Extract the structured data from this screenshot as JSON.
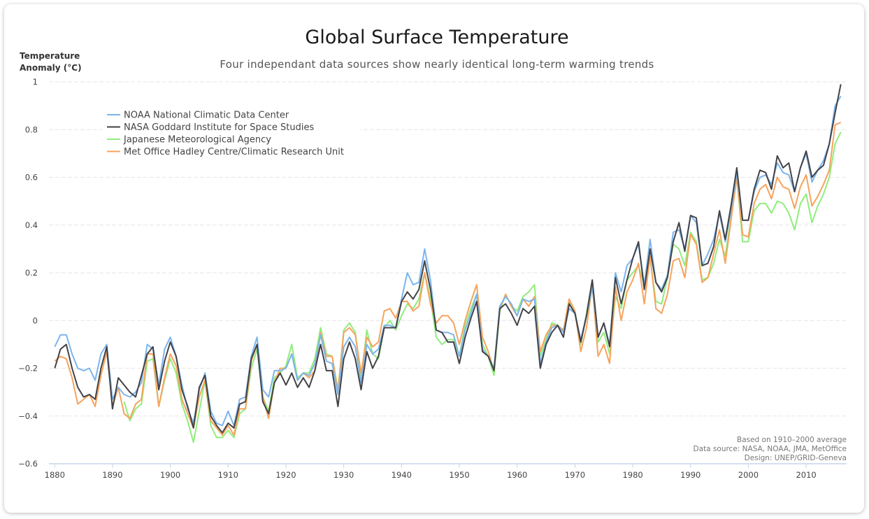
{
  "chart_data": {
    "type": "line",
    "title": "Global Surface Temperature",
    "subtitle": "Four independant data sources show nearly identical long-term warming trends",
    "ylabel_line1": "Temperature",
    "ylabel_line2": "Anomaly (°C)",
    "xlabel": "",
    "xlim": [
      1879,
      2017
    ],
    "ylim": [
      -0.6,
      1.0
    ],
    "y_ticks": [
      -0.6,
      -0.4,
      -0.2,
      0,
      0.2,
      0.4,
      0.6,
      0.8,
      1
    ],
    "y_tick_labels": [
      "−0.6",
      "−0.4",
      "−0.2",
      "0",
      "0.2",
      "0.4",
      "0.6",
      "0.8",
      "1"
    ],
    "x_ticks": [
      1880,
      1890,
      1900,
      1910,
      1920,
      1930,
      1940,
      1950,
      1960,
      1970,
      1980,
      1990,
      2000,
      2010
    ],
    "x_tick_labels": [
      "1880",
      "1890",
      "1900",
      "1910",
      "1920",
      "1930",
      "1940",
      "1950",
      "1960",
      "1970",
      "1980",
      "1990",
      "2000",
      "2010"
    ],
    "grid": true,
    "legend_position": "top-left",
    "x_start": 1880,
    "series": [
      {
        "name": "NOAA National Climatic Data Center",
        "color": "#7cb5ec",
        "values": [
          -0.11,
          -0.06,
          -0.06,
          -0.14,
          -0.2,
          -0.21,
          -0.2,
          -0.25,
          -0.14,
          -0.1,
          -0.33,
          -0.28,
          -0.31,
          -0.32,
          -0.3,
          -0.26,
          -0.1,
          -0.12,
          -0.27,
          -0.12,
          -0.07,
          -0.15,
          -0.27,
          -0.37,
          -0.43,
          -0.29,
          -0.22,
          -0.38,
          -0.43,
          -0.44,
          -0.38,
          -0.44,
          -0.33,
          -0.32,
          -0.15,
          -0.07,
          -0.29,
          -0.32,
          -0.21,
          -0.21,
          -0.2,
          -0.14,
          -0.25,
          -0.22,
          -0.23,
          -0.18,
          -0.06,
          -0.17,
          -0.18,
          -0.31,
          -0.11,
          -0.07,
          -0.11,
          -0.26,
          -0.1,
          -0.14,
          -0.12,
          -0.02,
          -0.02,
          -0.03,
          0.09,
          0.2,
          0.15,
          0.16,
          0.3,
          0.17,
          -0.04,
          -0.05,
          -0.05,
          -0.06,
          -0.15,
          -0.04,
          0.03,
          0.11,
          -0.12,
          -0.15,
          -0.2,
          0.06,
          0.1,
          0.07,
          0.02,
          0.09,
          0.08,
          0.09,
          -0.18,
          -0.09,
          -0.03,
          -0.02,
          -0.05,
          0.05,
          0.03,
          -0.08,
          0.02,
          0.14,
          -0.07,
          -0.01,
          -0.1,
          0.2,
          0.12,
          0.23,
          0.26,
          0.32,
          0.15,
          0.34,
          0.16,
          0.13,
          0.19,
          0.37,
          0.38,
          0.3,
          0.44,
          0.41,
          0.23,
          0.28,
          0.34,
          0.45,
          0.33,
          0.46,
          0.62,
          0.42,
          0.42,
          0.54,
          0.6,
          0.61,
          0.57,
          0.66,
          0.62,
          0.61,
          0.54,
          0.64,
          0.7,
          0.58,
          0.63,
          0.67,
          0.74,
          0.9,
          0.94
        ]
      },
      {
        "name": "NASA Goddard Institute for Space Studies",
        "color": "#434348",
        "values": [
          -0.2,
          -0.12,
          -0.1,
          -0.2,
          -0.28,
          -0.32,
          -0.31,
          -0.33,
          -0.2,
          -0.11,
          -0.37,
          -0.24,
          -0.27,
          -0.3,
          -0.32,
          -0.23,
          -0.14,
          -0.11,
          -0.29,
          -0.17,
          -0.09,
          -0.15,
          -0.29,
          -0.36,
          -0.45,
          -0.28,
          -0.23,
          -0.4,
          -0.44,
          -0.47,
          -0.43,
          -0.45,
          -0.35,
          -0.34,
          -0.16,
          -0.1,
          -0.34,
          -0.39,
          -0.26,
          -0.22,
          -0.27,
          -0.22,
          -0.28,
          -0.24,
          -0.28,
          -0.21,
          -0.1,
          -0.21,
          -0.21,
          -0.36,
          -0.16,
          -0.09,
          -0.16,
          -0.29,
          -0.13,
          -0.2,
          -0.15,
          -0.03,
          -0.03,
          -0.03,
          0.08,
          0.12,
          0.09,
          0.13,
          0.25,
          0.13,
          -0.04,
          -0.05,
          -0.09,
          -0.09,
          -0.18,
          -0.07,
          0.01,
          0.08,
          -0.13,
          -0.15,
          -0.21,
          0.05,
          0.07,
          0.03,
          -0.02,
          0.05,
          0.03,
          0.06,
          -0.2,
          -0.1,
          -0.05,
          -0.02,
          -0.07,
          0.07,
          0.03,
          -0.09,
          0.02,
          0.17,
          -0.07,
          -0.01,
          -0.11,
          0.18,
          0.07,
          0.17,
          0.26,
          0.33,
          0.13,
          0.3,
          0.16,
          0.12,
          0.18,
          0.33,
          0.41,
          0.29,
          0.44,
          0.43,
          0.23,
          0.24,
          0.31,
          0.46,
          0.34,
          0.48,
          0.64,
          0.42,
          0.42,
          0.55,
          0.63,
          0.62,
          0.55,
          0.69,
          0.64,
          0.66,
          0.54,
          0.64,
          0.71,
          0.6,
          0.63,
          0.65,
          0.74,
          0.87,
          0.99
        ]
      },
      {
        "name": "Japanese Meteorological Agency",
        "color": "#90ed7d",
        "values": [
          null,
          null,
          null,
          null,
          null,
          null,
          null,
          null,
          null,
          null,
          null,
          null,
          -0.34,
          -0.42,
          -0.37,
          -0.35,
          -0.17,
          -0.16,
          -0.36,
          -0.25,
          -0.16,
          -0.22,
          -0.35,
          -0.42,
          -0.51,
          -0.38,
          -0.25,
          -0.44,
          -0.49,
          -0.49,
          -0.46,
          -0.49,
          -0.39,
          -0.37,
          -0.2,
          -0.12,
          -0.32,
          -0.38,
          -0.24,
          -0.22,
          -0.19,
          -0.1,
          -0.24,
          -0.22,
          -0.22,
          -0.16,
          -0.03,
          -0.14,
          -0.15,
          -0.29,
          -0.04,
          -0.01,
          -0.05,
          -0.24,
          -0.04,
          -0.14,
          -0.16,
          -0.03,
          0.0,
          -0.04,
          0.02,
          0.07,
          0.05,
          0.09,
          0.2,
          0.09,
          -0.07,
          -0.1,
          -0.08,
          -0.08,
          -0.15,
          -0.02,
          0.05,
          0.11,
          -0.1,
          -0.15,
          -0.23,
          0.04,
          0.11,
          0.06,
          0.04,
          0.1,
          0.12,
          0.15,
          -0.15,
          -0.08,
          -0.01,
          -0.02,
          -0.04,
          0.08,
          0.04,
          -0.1,
          0.03,
          0.17,
          -0.09,
          -0.05,
          -0.14,
          0.1,
          0.05,
          0.17,
          0.2,
          0.23,
          0.15,
          0.26,
          0.08,
          0.07,
          0.18,
          0.32,
          0.3,
          0.23,
          0.37,
          0.33,
          0.17,
          0.18,
          0.24,
          0.34,
          0.27,
          0.43,
          0.6,
          0.33,
          0.33,
          0.46,
          0.49,
          0.49,
          0.45,
          0.5,
          0.49,
          0.45,
          0.38,
          0.49,
          0.53,
          0.41,
          0.48,
          0.53,
          0.6,
          0.74,
          0.79
        ]
      },
      {
        "name": "Met Office Hadley Centre/Climatic Research Unit",
        "color": "#f7a35c",
        "values": [
          -0.17,
          -0.15,
          -0.16,
          -0.24,
          -0.35,
          -0.33,
          -0.31,
          -0.36,
          -0.23,
          -0.13,
          -0.36,
          -0.28,
          -0.39,
          -0.41,
          -0.35,
          -0.33,
          -0.14,
          -0.14,
          -0.36,
          -0.24,
          -0.14,
          -0.19,
          -0.33,
          -0.39,
          -0.45,
          -0.32,
          -0.25,
          -0.42,
          -0.45,
          -0.48,
          -0.44,
          -0.48,
          -0.37,
          -0.37,
          -0.17,
          -0.1,
          -0.32,
          -0.41,
          -0.26,
          -0.2,
          -0.2,
          -0.14,
          -0.25,
          -0.22,
          -0.24,
          -0.21,
          -0.05,
          -0.15,
          -0.15,
          -0.3,
          -0.05,
          -0.03,
          -0.06,
          -0.22,
          -0.07,
          -0.11,
          -0.09,
          0.04,
          0.05,
          0.01,
          0.08,
          0.08,
          0.04,
          0.06,
          0.2,
          0.07,
          -0.01,
          0.02,
          0.02,
          -0.01,
          -0.1,
          0.0,
          0.08,
          0.15,
          -0.07,
          -0.13,
          -0.21,
          0.05,
          0.11,
          0.06,
          0.02,
          0.09,
          0.06,
          0.1,
          -0.13,
          -0.06,
          -0.02,
          -0.02,
          -0.04,
          0.09,
          0.04,
          -0.13,
          -0.03,
          0.15,
          -0.15,
          -0.1,
          -0.18,
          0.14,
          0.0,
          0.12,
          0.17,
          0.24,
          0.07,
          0.27,
          0.05,
          0.03,
          0.11,
          0.25,
          0.26,
          0.18,
          0.36,
          0.32,
          0.16,
          0.18,
          0.28,
          0.38,
          0.24,
          0.42,
          0.6,
          0.36,
          0.35,
          0.49,
          0.55,
          0.57,
          0.51,
          0.6,
          0.56,
          0.55,
          0.47,
          0.56,
          0.61,
          0.48,
          0.52,
          0.57,
          0.63,
          0.82,
          0.83
        ]
      }
    ],
    "annotations": [
      "Based on 1910–2000 average",
      "Data source: NASA, NOAA, JMA, MetOffice",
      "Design: UNEP/GRID-Geneva"
    ]
  }
}
